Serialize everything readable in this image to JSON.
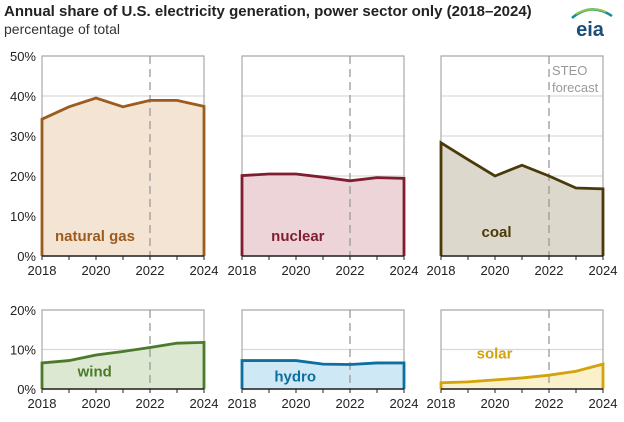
{
  "title": "Annual share of U.S. electricity generation, power sector only (2018–2024)",
  "subtitle": "percentage of total",
  "logo_text": "eia",
  "forecast_label_line1": "STEO",
  "forecast_label_line2": "forecast",
  "chart_data": [
    {
      "type": "area",
      "series": [
        {
          "name": "natural gas",
          "color": "#9c5b1f",
          "fill": "#f4e4d4",
          "values": [
            34.2,
            37.3,
            39.5,
            37.3,
            38.9,
            38.9,
            37.4
          ]
        }
      ],
      "x": [
        2018,
        2019,
        2020,
        2021,
        2022,
        2023,
        2024
      ],
      "xticks": [
        "2018",
        "2020",
        "2022",
        "2024"
      ],
      "ylim": [
        0,
        50
      ],
      "yticks": [
        "0%",
        "10%",
        "20%",
        "30%",
        "40%",
        "50%"
      ],
      "forecast_start": 2022,
      "grid": true
    },
    {
      "type": "area",
      "series": [
        {
          "name": "nuclear",
          "color": "#7e1e2e",
          "fill": "#ecd4d8",
          "values": [
            20.1,
            20.5,
            20.5,
            19.7,
            18.8,
            19.6,
            19.4
          ]
        }
      ],
      "x": [
        2018,
        2019,
        2020,
        2021,
        2022,
        2023,
        2024
      ],
      "xticks": [
        "2018",
        "2020",
        "2022",
        "2024"
      ],
      "ylim": [
        0,
        50
      ],
      "forecast_start": 2022,
      "grid": true
    },
    {
      "type": "area",
      "series": [
        {
          "name": "coal",
          "color": "#4a3a0a",
          "fill": "#dcd9cc",
          "values": [
            28.3,
            24.1,
            20.0,
            22.7,
            20.0,
            17.0,
            16.8
          ]
        }
      ],
      "x": [
        2018,
        2019,
        2020,
        2021,
        2022,
        2023,
        2024
      ],
      "xticks": [
        "2018",
        "2020",
        "2022",
        "2024"
      ],
      "ylim": [
        0,
        50
      ],
      "forecast_start": 2022,
      "grid": true
    },
    {
      "type": "area",
      "series": [
        {
          "name": "wind",
          "color": "#4a7a2a",
          "fill": "#dde8d3",
          "values": [
            6.6,
            7.2,
            8.6,
            9.5,
            10.5,
            11.6,
            11.8
          ]
        }
      ],
      "x": [
        2018,
        2019,
        2020,
        2021,
        2022,
        2023,
        2024
      ],
      "xticks": [
        "2018",
        "2020",
        "2022",
        "2024"
      ],
      "ylim": [
        0,
        20
      ],
      "yticks": [
        "0%",
        "10%",
        "20%"
      ],
      "forecast_start": 2022,
      "grid": true
    },
    {
      "type": "area",
      "series": [
        {
          "name": "hydro",
          "color": "#0d6fa0",
          "fill": "#cfe8f5",
          "values": [
            7.2,
            7.2,
            7.2,
            6.3,
            6.2,
            6.6,
            6.6
          ]
        }
      ],
      "x": [
        2018,
        2019,
        2020,
        2021,
        2022,
        2023,
        2024
      ],
      "xticks": [
        "2018",
        "2020",
        "2022",
        "2024"
      ],
      "ylim": [
        0,
        20
      ],
      "forecast_start": 2022,
      "grid": true
    },
    {
      "type": "area",
      "series": [
        {
          "name": "solar",
          "color": "#d4a20a",
          "fill": "#fbf0cc",
          "values": [
            1.6,
            1.8,
            2.3,
            2.8,
            3.5,
            4.5,
            6.3
          ]
        }
      ],
      "x": [
        2018,
        2019,
        2020,
        2021,
        2022,
        2023,
        2024
      ],
      "xticks": [
        "2018",
        "2020",
        "2022",
        "2024"
      ],
      "ylim": [
        0,
        20
      ],
      "forecast_start": 2022,
      "grid": true
    }
  ]
}
